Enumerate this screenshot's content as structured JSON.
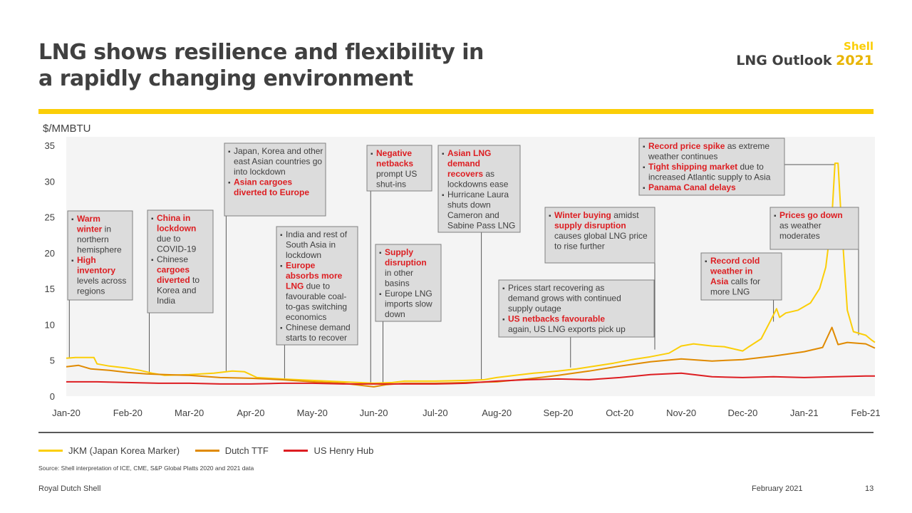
{
  "header": {
    "title_line1": "LNG shows resilience and flexibility in",
    "title_line2": "a rapidly changing environment",
    "brand_shell": "Shell",
    "brand_outlook": "LNG Outlook",
    "brand_year": "2021"
  },
  "colors": {
    "accent_yellow": "#fbce07",
    "jkm": "#fbce07",
    "ttf": "#e08a00",
    "henry_hub": "#dd1d21",
    "highlight_text": "#dd1d21",
    "box_bg": "#dcdcdc",
    "plot_bg": "#f4f4f4"
  },
  "chart_data": {
    "type": "line",
    "ylabel": "$/MMBTU",
    "ylim": [
      0,
      35
    ],
    "yticks": [
      0,
      5,
      10,
      15,
      20,
      25,
      30,
      35
    ],
    "x_tick_labels": [
      "Jan-20",
      "Feb-20",
      "Mar-20",
      "Apr-20",
      "May-20",
      "Jun-20",
      "Jul-20",
      "Aug-20",
      "Sep-20",
      "Oct-20",
      "Nov-20",
      "Dec-20",
      "Jan-21",
      "Feb-21"
    ],
    "x_range_months": [
      0,
      13.15
    ],
    "series": [
      {
        "name": "JKM (Japan Korea Marker)",
        "color": "#fbce07",
        "points": [
          [
            0,
            5.3
          ],
          [
            0.15,
            5.4
          ],
          [
            0.45,
            5.4
          ],
          [
            0.5,
            4.5
          ],
          [
            0.7,
            4.2
          ],
          [
            1,
            3.9
          ],
          [
            1.2,
            3.6
          ],
          [
            1.4,
            3.2
          ],
          [
            1.6,
            2.9
          ],
          [
            2,
            3.0
          ],
          [
            2.4,
            3.2
          ],
          [
            2.7,
            3.5
          ],
          [
            2.9,
            3.4
          ],
          [
            3.0,
            3.0
          ],
          [
            3.1,
            2.6
          ],
          [
            3.5,
            2.4
          ],
          [
            4.0,
            2.2
          ],
          [
            4.5,
            2.0
          ],
          [
            5.0,
            1.8
          ],
          [
            5.3,
            1.9
          ],
          [
            5.5,
            2.1
          ],
          [
            6.0,
            2.1
          ],
          [
            6.5,
            2.2
          ],
          [
            6.8,
            2.3
          ],
          [
            7.0,
            2.6
          ],
          [
            7.3,
            2.9
          ],
          [
            7.6,
            3.2
          ],
          [
            8.0,
            3.5
          ],
          [
            8.3,
            3.8
          ],
          [
            8.6,
            4.2
          ],
          [
            8.9,
            4.6
          ],
          [
            9.2,
            5.1
          ],
          [
            9.5,
            5.5
          ],
          [
            9.8,
            6.0
          ],
          [
            10.0,
            7.0
          ],
          [
            10.2,
            7.3
          ],
          [
            10.5,
            7.0
          ],
          [
            10.7,
            6.9
          ],
          [
            10.9,
            6.5
          ],
          [
            11.0,
            6.3
          ],
          [
            11.1,
            6.9
          ],
          [
            11.3,
            8.0
          ],
          [
            11.45,
            10.5
          ],
          [
            11.55,
            12.2
          ],
          [
            11.6,
            11.0
          ],
          [
            11.7,
            11.6
          ],
          [
            11.9,
            12.0
          ],
          [
            12.1,
            13.0
          ],
          [
            12.25,
            15.0
          ],
          [
            12.35,
            18.0
          ],
          [
            12.45,
            25.0
          ],
          [
            12.5,
            32.5
          ],
          [
            12.55,
            32.5
          ],
          [
            12.6,
            25.0
          ],
          [
            12.7,
            12.0
          ],
          [
            12.8,
            9.0
          ],
          [
            13.0,
            8.5
          ],
          [
            13.1,
            7.8
          ],
          [
            13.15,
            7.5
          ]
        ]
      },
      {
        "name": "Dutch TTF",
        "color": "#e08a00",
        "points": [
          [
            0,
            4.1
          ],
          [
            0.2,
            4.3
          ],
          [
            0.4,
            3.8
          ],
          [
            0.7,
            3.6
          ],
          [
            1.0,
            3.3
          ],
          [
            1.3,
            3.1
          ],
          [
            1.6,
            3.0
          ],
          [
            2.0,
            2.9
          ],
          [
            2.5,
            2.6
          ],
          [
            3.0,
            2.5
          ],
          [
            3.5,
            2.3
          ],
          [
            4.0,
            2.0
          ],
          [
            4.5,
            1.8
          ],
          [
            4.8,
            1.5
          ],
          [
            5.0,
            1.3
          ],
          [
            5.2,
            1.6
          ],
          [
            5.5,
            1.8
          ],
          [
            6.0,
            1.8
          ],
          [
            6.5,
            1.9
          ],
          [
            7.0,
            2.0
          ],
          [
            7.5,
            2.4
          ],
          [
            8.0,
            2.9
          ],
          [
            8.5,
            3.5
          ],
          [
            9.0,
            4.2
          ],
          [
            9.5,
            4.8
          ],
          [
            10.0,
            5.2
          ],
          [
            10.5,
            4.9
          ],
          [
            11.0,
            5.1
          ],
          [
            11.5,
            5.6
          ],
          [
            12.0,
            6.2
          ],
          [
            12.3,
            6.8
          ],
          [
            12.45,
            9.6
          ],
          [
            12.55,
            7.2
          ],
          [
            12.7,
            7.5
          ],
          [
            13.0,
            7.3
          ],
          [
            13.15,
            6.7
          ]
        ]
      },
      {
        "name": "US Henry Hub",
        "color": "#dd1d21",
        "points": [
          [
            0,
            2.0
          ],
          [
            0.5,
            2.0
          ],
          [
            1.0,
            1.9
          ],
          [
            1.5,
            1.8
          ],
          [
            2.0,
            1.8
          ],
          [
            2.5,
            1.7
          ],
          [
            3.0,
            1.7
          ],
          [
            3.5,
            1.8
          ],
          [
            4.0,
            1.8
          ],
          [
            4.5,
            1.7
          ],
          [
            5.0,
            1.7
          ],
          [
            5.5,
            1.7
          ],
          [
            6.0,
            1.7
          ],
          [
            6.5,
            1.8
          ],
          [
            7.0,
            2.1
          ],
          [
            7.5,
            2.3
          ],
          [
            8.0,
            2.4
          ],
          [
            8.5,
            2.3
          ],
          [
            9.0,
            2.6
          ],
          [
            9.5,
            3.0
          ],
          [
            10.0,
            3.2
          ],
          [
            10.5,
            2.7
          ],
          [
            11.0,
            2.6
          ],
          [
            11.5,
            2.7
          ],
          [
            12.0,
            2.6
          ],
          [
            12.5,
            2.7
          ],
          [
            13.0,
            2.8
          ],
          [
            13.15,
            2.8
          ]
        ]
      }
    ],
    "annotations": [
      {
        "id": "warm-winter",
        "anchor_month": 0.05,
        "anchor_value": 5.3,
        "bullets": [
          [
            {
              "t": "Warm winter",
              "hl": true
            },
            {
              "t": " in northern hemisphere",
              "hl": false
            }
          ],
          [
            {
              "t": "High inventory",
              "hl": true
            },
            {
              "t": " levels across regions",
              "hl": false
            }
          ]
        ],
        "lines": [
          [
            0,
            "Warm"
          ],
          [
            0,
            "winter in"
          ],
          [
            0,
            "northern"
          ],
          [
            0,
            "hemisphere"
          ],
          [
            1,
            "High"
          ],
          [
            1,
            "inventory"
          ],
          [
            1,
            "levels across"
          ],
          [
            1,
            "regions"
          ]
        ]
      },
      {
        "id": "china-lockdown",
        "anchor_month": 1.35,
        "anchor_value": 3.0,
        "lines": [
          [
            0,
            "China in"
          ],
          [
            0,
            "lockdown"
          ],
          [
            0,
            "due to"
          ],
          [
            0,
            "COVID-19"
          ],
          [
            1,
            "Chinese"
          ],
          [
            1,
            "cargoes"
          ],
          [
            1,
            "diverted to"
          ],
          [
            1,
            "Korea and"
          ],
          [
            1,
            "India"
          ]
        ]
      },
      {
        "id": "asian-lockdown",
        "anchor_month": 2.6,
        "anchor_value": 3.5,
        "lines": [
          [
            0,
            "Japan, Korea and other"
          ],
          [
            0,
            "east Asian countries go"
          ],
          [
            0,
            "into lockdown"
          ],
          [
            1,
            "Asian cargoes"
          ],
          [
            1,
            "diverted to Europe"
          ]
        ]
      },
      {
        "id": "europe-absorbs",
        "anchor_month": 3.55,
        "anchor_value": 2.4,
        "lines": [
          [
            0,
            "India and rest of"
          ],
          [
            0,
            "South Asia in"
          ],
          [
            0,
            "lockdown"
          ],
          [
            1,
            "Europe"
          ],
          [
            1,
            "absorbs more"
          ],
          [
            1,
            "LNG due to"
          ],
          [
            1,
            "favourable coal-"
          ],
          [
            1,
            "to-gas switching"
          ],
          [
            1,
            "economics"
          ],
          [
            2,
            "Chinese demand"
          ],
          [
            2,
            "starts to recover"
          ]
        ]
      },
      {
        "id": "negative-netbacks",
        "anchor_month": 4.95,
        "anchor_value": 1.8,
        "lines": [
          [
            0,
            "Negative"
          ],
          [
            0,
            "netbacks"
          ],
          [
            0,
            "prompt US"
          ],
          [
            0,
            "shut-ins"
          ]
        ]
      },
      {
        "id": "supply-disruption",
        "anchor_month": 5.15,
        "anchor_value": 1.9,
        "lines": [
          [
            0,
            "Supply"
          ],
          [
            0,
            "disruption"
          ],
          [
            0,
            "in other"
          ],
          [
            0,
            "basins"
          ],
          [
            1,
            "Europe LNG"
          ],
          [
            1,
            "imports slow"
          ],
          [
            1,
            "down"
          ]
        ]
      },
      {
        "id": "asian-lng-recovers",
        "anchor_month": 6.75,
        "anchor_value": 2.3,
        "lines": [
          [
            0,
            "Asian LNG"
          ],
          [
            0,
            "demand"
          ],
          [
            0,
            "recovers as"
          ],
          [
            0,
            "lockdowns ease"
          ],
          [
            1,
            "Hurricane Laura"
          ],
          [
            1,
            "shuts down"
          ],
          [
            1,
            "Cameron and"
          ],
          [
            1,
            "Sabine Pass LNG"
          ]
        ]
      },
      {
        "id": "prices-recovering",
        "anchor_month": 8.2,
        "anchor_value": 4.0,
        "lines": [
          [
            0,
            "Prices start recovering as"
          ],
          [
            0,
            "demand grows with continued"
          ],
          [
            0,
            "supply outage"
          ],
          [
            1,
            "US netbacks favourable"
          ],
          [
            1,
            "again, US LNG exports pick up"
          ]
        ]
      },
      {
        "id": "winter-buying",
        "anchor_month": 9.8,
        "anchor_value": 6.5,
        "lines": [
          [
            0,
            "Winter buying amidst"
          ],
          [
            0,
            "supply disruption"
          ],
          [
            0,
            "causes global LNG price"
          ],
          [
            0,
            "to rise further"
          ]
        ]
      },
      {
        "id": "record-price-spike",
        "anchor_month": 12.5,
        "anchor_value": 32.5,
        "lines": [
          [
            0,
            "Record price spike as extreme"
          ],
          [
            0,
            "weather continues"
          ],
          [
            1,
            "Tight shipping market due to"
          ],
          [
            1,
            "increased Atlantic supply to Asia"
          ],
          [
            2,
            "Panama Canal delays"
          ]
        ]
      },
      {
        "id": "record-cold-weather",
        "anchor_month": 11.5,
        "anchor_value": 10.4,
        "lines": [
          [
            0,
            "Record cold"
          ],
          [
            0,
            "weather in"
          ],
          [
            0,
            "Asia calls for"
          ],
          [
            0,
            "more LNG"
          ]
        ]
      },
      {
        "id": "prices-go-down",
        "anchor_month": 12.9,
        "anchor_value": 8.5,
        "lines": [
          [
            0,
            "Prices go down"
          ],
          [
            0,
            "as weather"
          ],
          [
            0,
            "moderates"
          ]
        ]
      }
    ]
  },
  "legend": [
    {
      "label": "JKM (Japan Korea Marker)",
      "color": "#fbce07"
    },
    {
      "label": "Dutch TTF",
      "color": "#e08a00"
    },
    {
      "label": "US Henry Hub",
      "color": "#dd1d21"
    }
  ],
  "footer": {
    "source": "Source: Shell interpretation of ICE, CME, S&P Global Platts 2020 and 2021 data",
    "company": "Royal Dutch Shell",
    "date": "February 2021",
    "page": "13"
  }
}
